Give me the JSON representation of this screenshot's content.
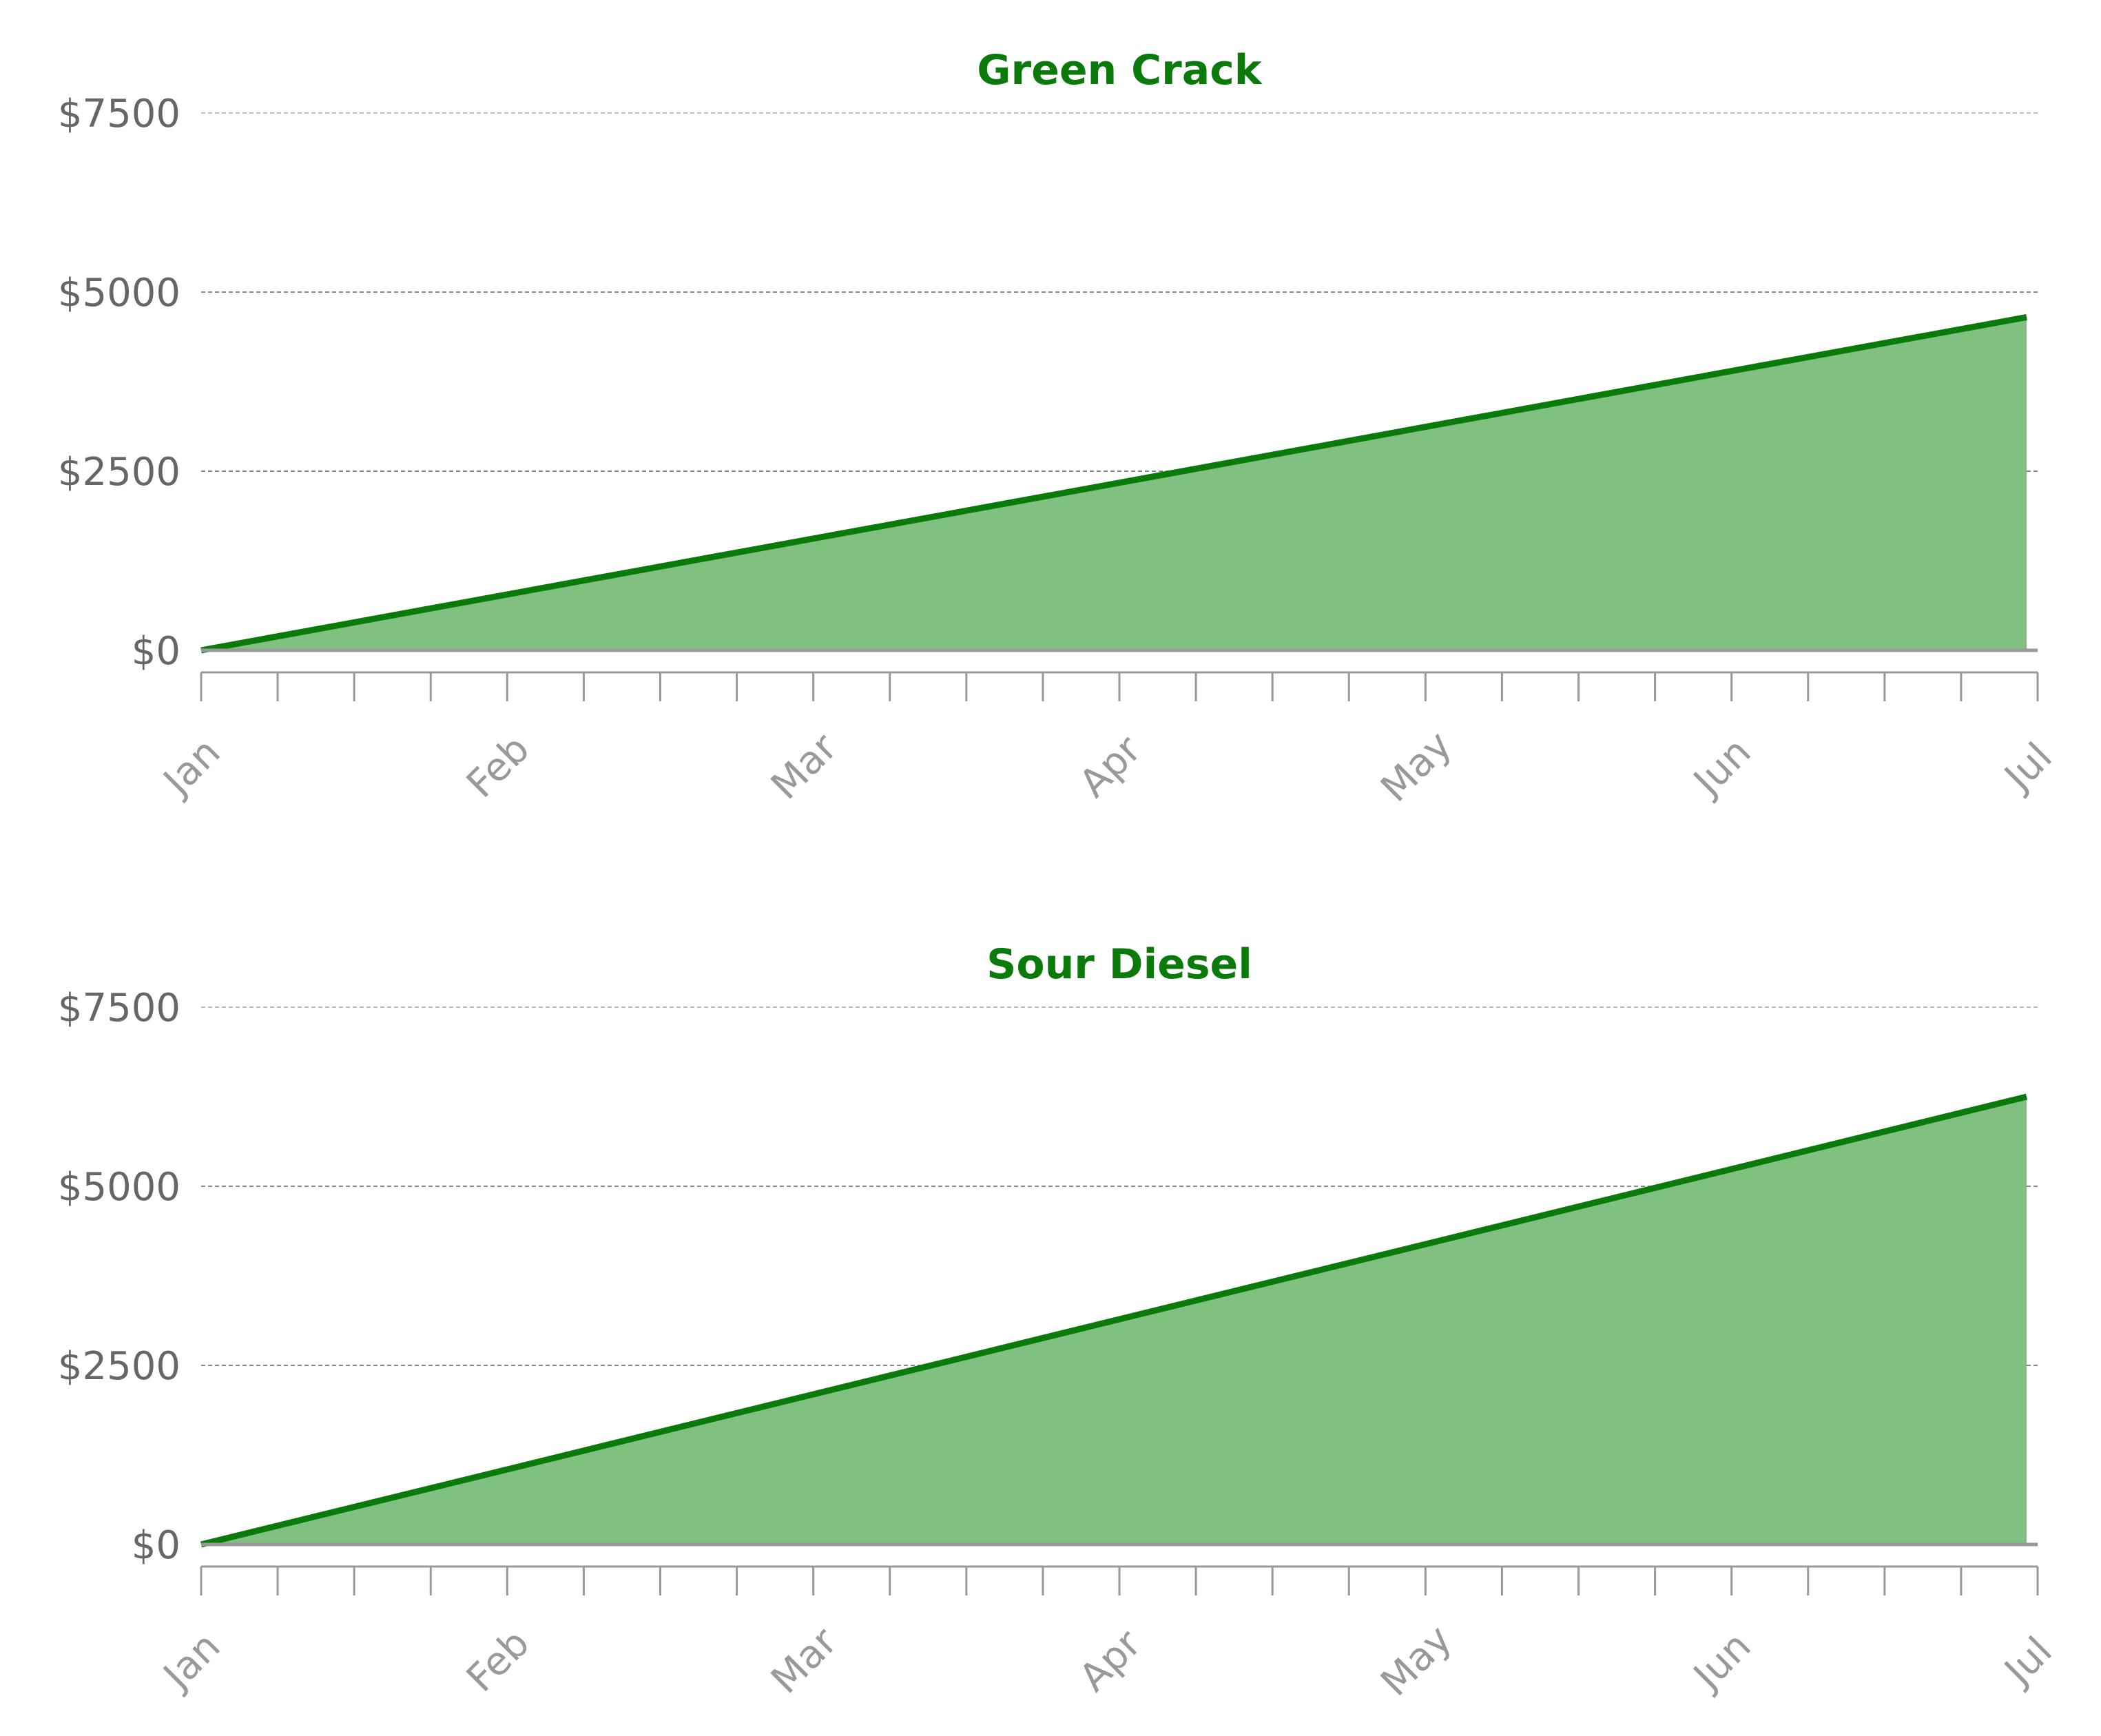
{
  "colors": {
    "line": "#0a7a0a",
    "fill": "#80c080",
    "title": "#0a7a0a",
    "grid": "#888888",
    "axis": "#999999"
  },
  "chart_data": [
    {
      "type": "area",
      "title": "Green Crack",
      "x": [
        "Jan",
        "Jul"
      ],
      "y": [
        0,
        4650
      ],
      "series": [
        {
          "values": [
            0,
            4650
          ]
        }
      ],
      "x_tick_labels": [
        "Jan",
        "Feb",
        "Mar",
        "Apr",
        "May",
        "Jun",
        "Jul"
      ],
      "x_minor_ticks_per_major": 4,
      "y_ticks": [
        0,
        2500,
        5000,
        7500
      ],
      "y_tick_labels": [
        "$0",
        "$2500",
        "$5000",
        "$7500"
      ],
      "ylim": [
        0,
        7500
      ],
      "grid": true,
      "xlabel": "",
      "ylabel": ""
    },
    {
      "type": "area",
      "title": "Sour Diesel",
      "x": [
        "Jan",
        "Jul"
      ],
      "y": [
        0,
        6250
      ],
      "series": [
        {
          "values": [
            0,
            6250
          ]
        }
      ],
      "x_tick_labels": [
        "Jan",
        "Feb",
        "Mar",
        "Apr",
        "May",
        "Jun",
        "Jul"
      ],
      "x_minor_ticks_per_major": 4,
      "y_ticks": [
        0,
        2500,
        5000,
        7500
      ],
      "y_tick_labels": [
        "$0",
        "$2500",
        "$5000",
        "$7500"
      ],
      "ylim": [
        0,
        7500
      ],
      "grid": true,
      "xlabel": "",
      "ylabel": ""
    }
  ]
}
